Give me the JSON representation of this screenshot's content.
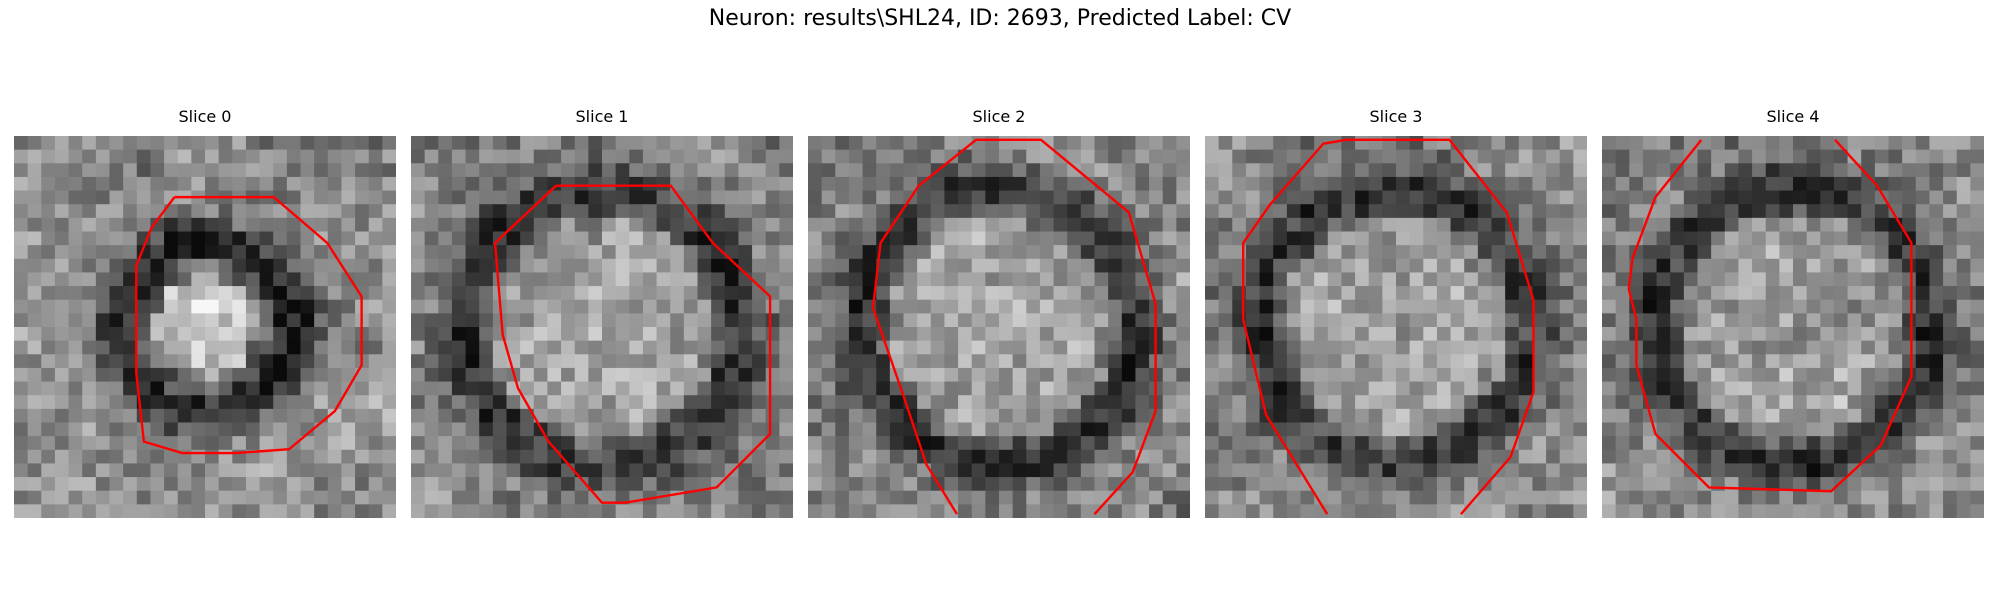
{
  "figure": {
    "title": "Neuron: results\\SHL24, ID: 2693, Predicted Label: CV"
  },
  "colors": {
    "contour": "#ff0000",
    "background": "#ffffff"
  },
  "slices": [
    {
      "label": "Slice 0",
      "seed": 11,
      "mode": "center",
      "contour": [
        [
          0.42,
          0.16
        ],
        [
          0.68,
          0.16
        ],
        [
          0.82,
          0.28
        ],
        [
          0.91,
          0.42
        ],
        [
          0.91,
          0.6
        ],
        [
          0.84,
          0.72
        ],
        [
          0.72,
          0.82
        ],
        [
          0.58,
          0.83
        ],
        [
          0.44,
          0.83
        ],
        [
          0.34,
          0.8
        ],
        [
          0.32,
          0.62
        ],
        [
          0.32,
          0.34
        ],
        [
          0.36,
          0.24
        ]
      ]
    },
    {
      "label": "Slice 1",
      "seed": 23,
      "mode": "cell",
      "contour": [
        [
          0.38,
          0.13
        ],
        [
          0.68,
          0.13
        ],
        [
          0.79,
          0.28
        ],
        [
          0.94,
          0.42
        ],
        [
          0.94,
          0.78
        ],
        [
          0.8,
          0.92
        ],
        [
          0.56,
          0.96
        ],
        [
          0.5,
          0.96
        ],
        [
          0.36,
          0.8
        ],
        [
          0.28,
          0.66
        ],
        [
          0.24,
          0.52
        ],
        [
          0.22,
          0.28
        ]
      ]
    },
    {
      "label": "Slice 2",
      "seed": 37,
      "mode": "cell",
      "open": true,
      "contour": [
        [
          0.39,
          0.99
        ],
        [
          0.31,
          0.86
        ],
        [
          0.25,
          0.68
        ],
        [
          0.17,
          0.45
        ],
        [
          0.19,
          0.28
        ],
        [
          0.29,
          0.13
        ],
        [
          0.44,
          0.01
        ],
        [
          0.61,
          0.01
        ],
        [
          0.84,
          0.2
        ],
        [
          0.91,
          0.44
        ],
        [
          0.91,
          0.72
        ],
        [
          0.85,
          0.88
        ],
        [
          0.75,
          0.99
        ]
      ]
    },
    {
      "label": "Slice 3",
      "seed": 51,
      "mode": "cell",
      "open": true,
      "contour": [
        [
          0.32,
          0.99
        ],
        [
          0.16,
          0.73
        ],
        [
          0.1,
          0.48
        ],
        [
          0.1,
          0.28
        ],
        [
          0.17,
          0.18
        ],
        [
          0.31,
          0.02
        ],
        [
          0.37,
          0.01
        ],
        [
          0.64,
          0.01
        ],
        [
          0.79,
          0.2
        ],
        [
          0.86,
          0.43
        ],
        [
          0.86,
          0.67
        ],
        [
          0.8,
          0.84
        ],
        [
          0.67,
          0.99
        ]
      ]
    },
    {
      "label": "Slice 4",
      "seed": 67,
      "mode": "cell",
      "open": true,
      "contour": [
        [
          0.26,
          0.01
        ],
        [
          0.14,
          0.16
        ],
        [
          0.08,
          0.32
        ],
        [
          0.07,
          0.4
        ],
        [
          0.09,
          0.48
        ],
        [
          0.09,
          0.6
        ],
        [
          0.14,
          0.78
        ],
        [
          0.28,
          0.92
        ],
        [
          0.6,
          0.93
        ],
        [
          0.73,
          0.81
        ],
        [
          0.81,
          0.63
        ],
        [
          0.81,
          0.28
        ],
        [
          0.72,
          0.13
        ],
        [
          0.61,
          0.01
        ]
      ]
    }
  ]
}
